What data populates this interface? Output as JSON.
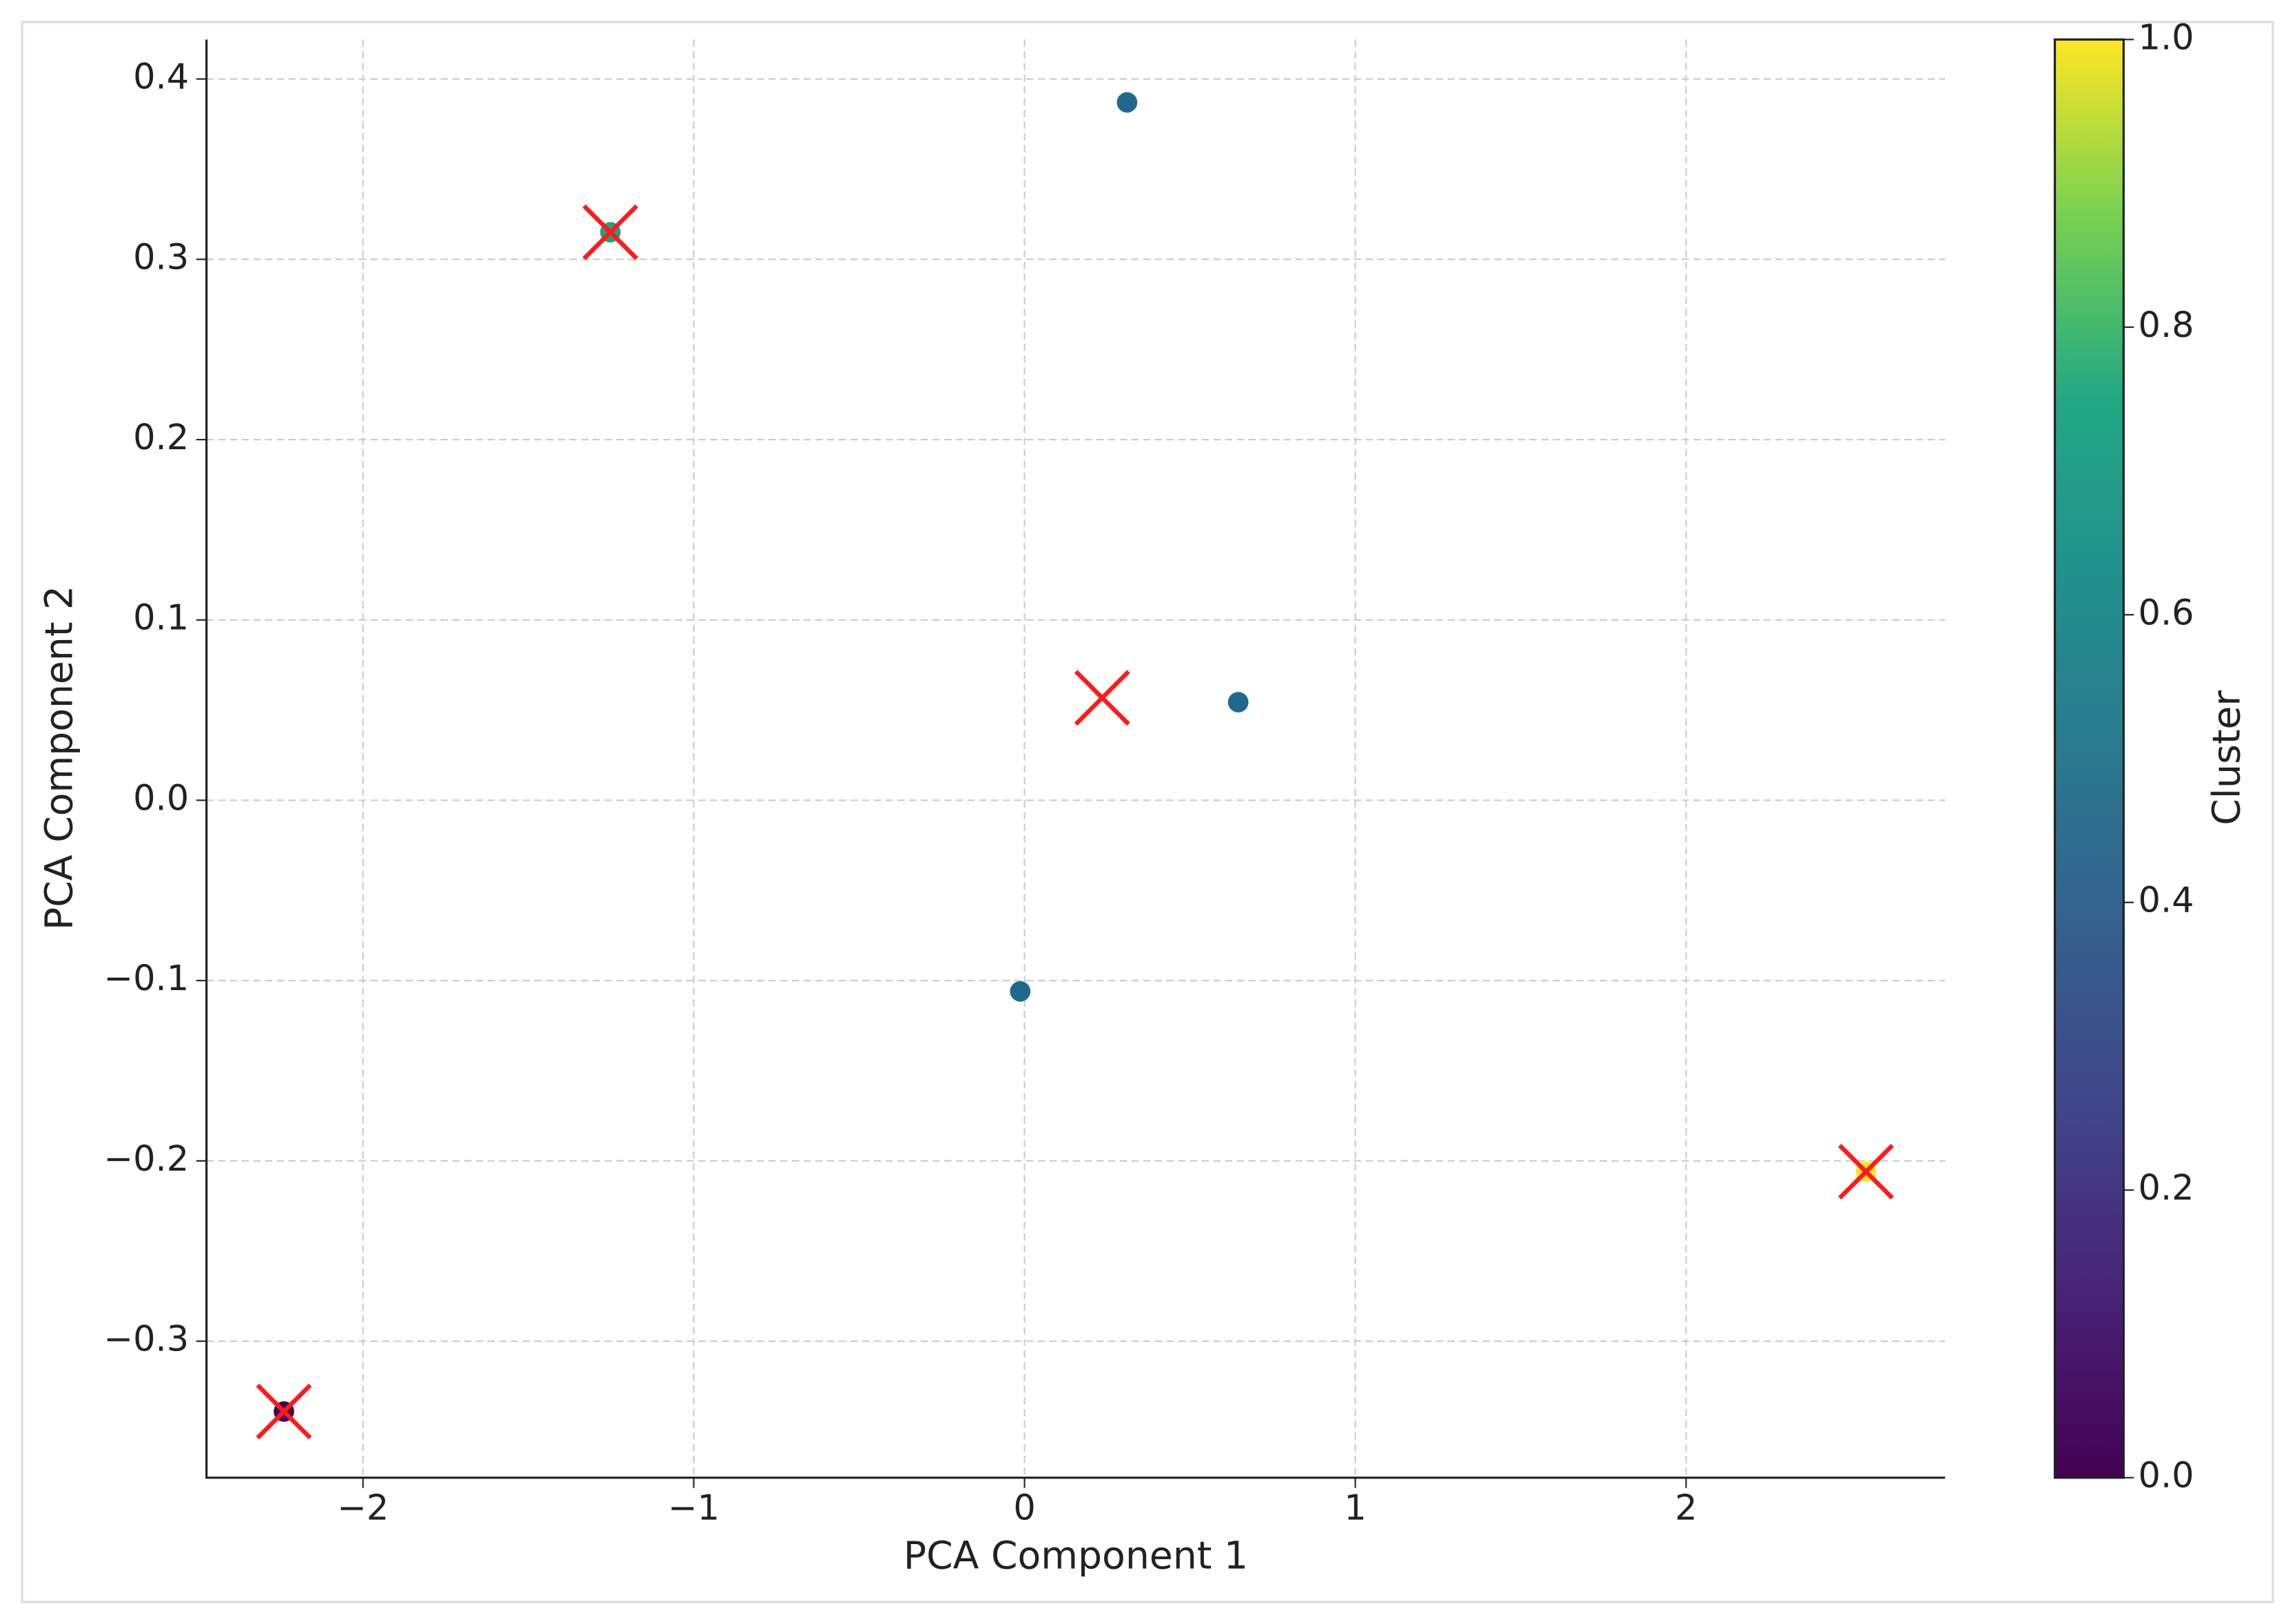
{
  "chart_data": {
    "type": "scatter",
    "x_label": "PCA Component 1",
    "y_label": "PCA Component 2",
    "xlim": [
      -2.473,
      2.783
    ],
    "ylim": [
      -0.3757,
      0.4219
    ],
    "xticks": [
      {
        "value": -2,
        "label": "−2"
      },
      {
        "value": -1,
        "label": "−1"
      },
      0,
      1,
      2
    ],
    "yticks": [
      {
        "value": -0.3,
        "label": "−0.3"
      },
      {
        "value": -0.2,
        "label": "−0.2"
      },
      {
        "value": -0.1,
        "label": "−0.1"
      },
      {
        "value": 0,
        "label": "0.0"
      },
      0.1,
      0.2,
      0.3,
      0.4
    ],
    "grid": true,
    "series": [
      {
        "marker": "circle",
        "x": [
          0.31,
          0.646,
          -0.013,
          -1.252,
          -2.239,
          2.544
        ],
        "values": [
          0.387,
          0.0544,
          -0.106,
          0.315,
          -0.339,
          -0.206
        ],
        "colors": [
          "#1f6a8c",
          "#1f6a8c",
          "#1f6a8c",
          "#24a07e",
          "#440154",
          "#fde725"
        ]
      },
      {
        "marker": "x",
        "color": "#ff1a1a",
        "x": [
          -1.252,
          0.235,
          -2.239,
          2.544
        ],
        "values": [
          0.315,
          0.0568,
          -0.339,
          -0.206
        ]
      }
    ],
    "colorbar": {
      "label": "Cluster",
      "colormap": "viridis",
      "lim": [
        0,
        1
      ],
      "ticks": [
        {
          "value": 0,
          "label": "0.0"
        },
        {
          "value": 0.2,
          "label": "0.2"
        },
        {
          "value": 0.4,
          "label": "0.4"
        },
        {
          "value": 0.6,
          "label": "0.6"
        },
        {
          "value": 0.8,
          "label": "0.8"
        },
        {
          "value": 1,
          "label": "1.0"
        }
      ]
    }
  }
}
